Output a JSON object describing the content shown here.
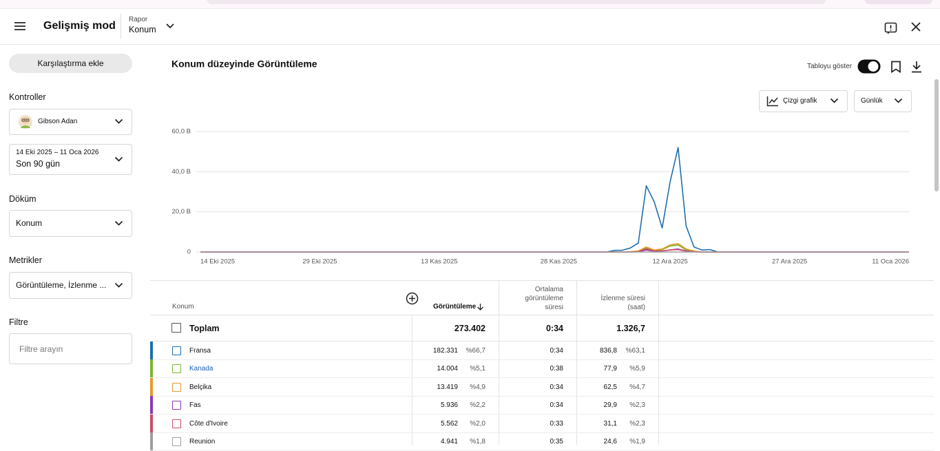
{
  "header": {
    "title": "Gelişmiş mod",
    "report_label": "Rapor",
    "report_value": "Konum"
  },
  "sidebar": {
    "compare_button": "Karşılaştırma ekle",
    "controls_title": "Kontroller",
    "channel": "Gibson Adan",
    "date_range": "14 Eki 2025 – 11 Oca 2026",
    "period": "Son 90 gün",
    "breakdown_title": "Döküm",
    "breakdown_value": "Konum",
    "metrics_title": "Metrikler",
    "metrics_value": "Görüntüleme, İzlenme ...",
    "filter_title": "Filtre",
    "filter_placeholder": "Filtre arayın"
  },
  "toolbar": {
    "show_table": "Tabloyu göster",
    "chart_type": "Çizgi grafik",
    "granularity": "Günlük"
  },
  "chart_data": {
    "type": "line",
    "title": "Konum düzeyinde Görüntüleme",
    "x": [
      "14 Eki 2025",
      "15 Eki 2025",
      "16 Eki 2025",
      "17 Eki 2025",
      "18 Eki 2025",
      "19 Eki 2025",
      "20 Eki 2025",
      "21 Eki 2025",
      "22 Eki 2025",
      "23 Eki 2025",
      "24 Eki 2025",
      "25 Eki 2025",
      "26 Eki 2025",
      "27 Eki 2025",
      "28 Eki 2025",
      "29 Eki 2025",
      "30 Eki 2025",
      "31 Eki 2025",
      "1 Kas 2025",
      "2 Kas 2025",
      "3 Kas 2025",
      "4 Kas 2025",
      "5 Kas 2025",
      "6 Kas 2025",
      "7 Kas 2025",
      "8 Kas 2025",
      "9 Kas 2025",
      "10 Kas 2025",
      "11 Kas 2025",
      "12 Kas 2025",
      "13 Kas 2025",
      "14 Kas 2025",
      "15 Kas 2025",
      "16 Kas 2025",
      "17 Kas 2025",
      "18 Kas 2025",
      "19 Kas 2025",
      "20 Kas 2025",
      "21 Kas 2025",
      "22 Kas 2025",
      "23 Kas 2025",
      "24 Kas 2025",
      "25 Kas 2025",
      "26 Kas 2025",
      "27 Kas 2025",
      "28 Kas 2025",
      "29 Kas 2025",
      "30 Kas 2025",
      "1 Ara 2025",
      "2 Ara 2025",
      "3 Ara 2025",
      "4 Ara 2025",
      "5 Ara 2025",
      "6 Ara 2025",
      "7 Ara 2025",
      "8 Ara 2025",
      "9 Ara 2025",
      "10 Ara 2025",
      "11 Ara 2025",
      "12 Ara 2025",
      "13 Ara 2025",
      "14 Ara 2025",
      "15 Ara 2025",
      "16 Ara 2025",
      "17 Ara 2025",
      "18 Ara 2025",
      "19 Ara 2025",
      "20 Ara 2025",
      "21 Ara 2025",
      "22 Ara 2025",
      "23 Ara 2025",
      "24 Ara 2025",
      "25 Ara 2025",
      "26 Ara 2025",
      "27 Ara 2025",
      "28 Ara 2025",
      "29 Ara 2025",
      "30 Ara 2025",
      "31 Ara 2025",
      "1 Oca 2026",
      "2 Oca 2026",
      "3 Oca 2026",
      "4 Oca 2026",
      "5 Oca 2026",
      "6 Oca 2026",
      "7 Oca 2026",
      "8 Oca 2026",
      "9 Oca 2026",
      "10 Oca 2026",
      "11 Oca 2026"
    ],
    "xticks": [
      "14 Eki 2025",
      "29 Eki 2025",
      "13 Kas 2025",
      "28 Kas 2025",
      "12 Ara 2025",
      "27 Ara 2025",
      "11 Oca 2026"
    ],
    "ylim": [
      0,
      60
    ],
    "yticks": [
      0,
      {
        "value": 20,
        "label": "20,0 B"
      },
      {
        "value": 40,
        "label": "40,0 B"
      },
      {
        "value": 60,
        "label": "60,0 B"
      }
    ],
    "grid": true,
    "series": [
      {
        "name": "Fransa",
        "color": "#1b6fb0",
        "values": [
          0,
          0,
          0,
          0,
          0,
          0,
          0,
          0,
          0,
          0,
          0,
          0,
          0,
          0,
          0,
          0,
          0,
          0,
          0,
          0,
          0,
          0,
          0,
          0,
          0,
          0,
          0,
          0,
          0,
          0,
          0,
          0,
          0,
          0,
          0,
          0,
          0,
          0,
          0,
          0,
          0,
          0,
          0,
          0,
          0,
          0,
          0,
          0,
          0,
          0,
          0,
          0,
          0.8,
          0.9,
          2,
          4.5,
          33,
          25,
          12,
          35,
          52,
          13,
          2.5,
          1,
          1.2,
          0,
          0,
          0,
          0,
          0,
          0,
          0,
          0,
          0,
          0,
          0,
          0,
          0,
          0,
          0,
          0,
          0,
          0,
          0,
          0,
          0,
          0,
          0,
          0,
          0
        ]
      },
      {
        "name": "Kanada",
        "color": "#7ab52f",
        "values": [
          0,
          0,
          0,
          0,
          0,
          0,
          0,
          0,
          0,
          0,
          0,
          0,
          0,
          0,
          0,
          0,
          0,
          0,
          0,
          0,
          0,
          0,
          0,
          0,
          0,
          0,
          0,
          0,
          0,
          0,
          0,
          0,
          0,
          0,
          0,
          0,
          0,
          0,
          0,
          0,
          0,
          0,
          0,
          0,
          0,
          0,
          0,
          0,
          0,
          0,
          0,
          0,
          0,
          0,
          0.1,
          0.3,
          2,
          0.8,
          1.2,
          3,
          3.5,
          1,
          0.3,
          0,
          0,
          0,
          0,
          0,
          0,
          0,
          0,
          0,
          0,
          0,
          0,
          0,
          0,
          0,
          0,
          0,
          0,
          0,
          0,
          0,
          0,
          0,
          0,
          0,
          0,
          0
        ]
      },
      {
        "name": "Belçika",
        "color": "#e39a2d",
        "values": [
          0,
          0,
          0,
          0,
          0,
          0,
          0,
          0,
          0,
          0,
          0,
          0,
          0,
          0,
          0,
          0,
          0,
          0,
          0,
          0,
          0,
          0,
          0,
          0,
          0,
          0,
          0,
          0,
          0,
          0,
          0,
          0,
          0,
          0,
          0,
          0,
          0,
          0,
          0,
          0,
          0,
          0,
          0,
          0,
          0,
          0,
          0,
          0,
          0,
          0,
          0,
          0,
          0,
          0,
          0.2,
          0.5,
          2.5,
          1,
          1.5,
          3.5,
          4.2,
          1.5,
          0.5,
          0,
          0,
          0,
          0,
          0,
          0,
          0,
          0,
          0,
          0,
          0,
          0,
          0,
          0,
          0,
          0,
          0,
          0,
          0,
          0,
          0,
          0,
          0,
          0,
          0,
          0,
          0
        ]
      },
      {
        "name": "Fas",
        "color": "#8a3ab3",
        "values": [
          0,
          0,
          0,
          0,
          0,
          0,
          0,
          0,
          0,
          0,
          0,
          0,
          0,
          0,
          0,
          0,
          0,
          0,
          0,
          0,
          0,
          0,
          0,
          0,
          0,
          0,
          0,
          0,
          0,
          0,
          0,
          0,
          0,
          0,
          0,
          0,
          0,
          0,
          0,
          0,
          0,
          0,
          0,
          0,
          0,
          0,
          0,
          0,
          0,
          0,
          0,
          0,
          0,
          0,
          0,
          0.1,
          1,
          0.4,
          0.5,
          1,
          1.5,
          0.5,
          0.1,
          0,
          0,
          0,
          0,
          0,
          0,
          0,
          0,
          0,
          0,
          0,
          0,
          0,
          0,
          0,
          0,
          0,
          0,
          0,
          0,
          0,
          0,
          0,
          0,
          0,
          0,
          0
        ]
      },
      {
        "name": "Côte d'Ivoire",
        "color": "#cf4a68",
        "values": [
          0,
          0,
          0,
          0,
          0,
          0,
          0,
          0,
          0,
          0,
          0,
          0,
          0,
          0,
          0,
          0,
          0,
          0,
          0,
          0,
          0,
          0,
          0,
          0,
          0,
          0,
          0,
          0,
          0,
          0,
          0,
          0,
          0,
          0,
          0,
          0,
          0,
          0,
          0,
          0,
          0,
          0,
          0,
          0,
          0,
          0,
          0,
          0,
          0,
          0,
          0,
          0,
          0,
          0,
          0,
          0.2,
          1.5,
          0.5,
          0.6,
          1,
          1.2,
          0.4,
          0.1,
          0,
          0,
          0,
          0,
          0,
          0,
          0,
          0,
          0,
          0,
          0,
          0,
          0,
          0,
          0,
          0,
          0,
          0,
          0,
          0,
          0,
          0,
          0,
          0,
          0,
          0,
          0
        ]
      },
      {
        "name": "Reunion",
        "color": "#9e9e9e",
        "values": [
          0,
          0,
          0,
          0,
          0,
          0,
          0,
          0,
          0,
          0,
          0,
          0,
          0,
          0,
          0,
          0,
          0,
          0,
          0,
          0,
          0,
          0,
          0,
          0,
          0,
          0,
          0,
          0,
          0,
          0,
          0,
          0,
          0,
          0,
          0,
          0,
          0,
          0,
          0,
          0,
          0,
          0,
          0,
          0,
          0,
          0,
          0,
          0,
          0,
          0,
          0,
          0,
          0,
          0,
          0,
          0,
          0,
          0,
          0,
          0,
          0,
          0,
          0,
          0,
          0,
          0,
          0,
          0,
          0,
          0,
          0,
          0,
          0,
          0,
          0,
          0,
          0,
          0,
          0,
          0,
          0,
          0,
          0,
          0,
          0,
          0,
          0,
          0,
          0,
          0
        ]
      }
    ]
  },
  "table": {
    "headers": {
      "location": "Konum",
      "views": "Görüntüleme",
      "avg": "Ortalama görüntüleme süresi",
      "hours": "İzlenme süresi (saat)"
    },
    "total": {
      "label": "Toplam",
      "views": "273.402",
      "avg": "0:34",
      "hours": "1.326,7"
    },
    "rows": [
      {
        "views": "182.331",
        "views_share": "%66,7",
        "avg": "0:34",
        "hours": "836,8",
        "hours_share": "%63,1"
      },
      {
        "views": "14.004",
        "views_share": "%5,1",
        "avg": "0:38",
        "hours": "77,9",
        "hours_share": "%5,9"
      },
      {
        "views": "13.419",
        "views_share": "%4,9",
        "avg": "0:34",
        "hours": "62,5",
        "hours_share": "%4,7"
      },
      {
        "views": "5.936",
        "views_share": "%2,2",
        "avg": "0:34",
        "hours": "29,9",
        "hours_share": "%2,3"
      },
      {
        "views": "5.562",
        "views_share": "%2,0",
        "avg": "0:33",
        "hours": "31,1",
        "hours_share": "%2,3"
      },
      {
        "views": "4.941",
        "views_share": "%1,8",
        "avg": "0:35",
        "hours": "24,6",
        "hours_share": "%1,9"
      }
    ]
  }
}
